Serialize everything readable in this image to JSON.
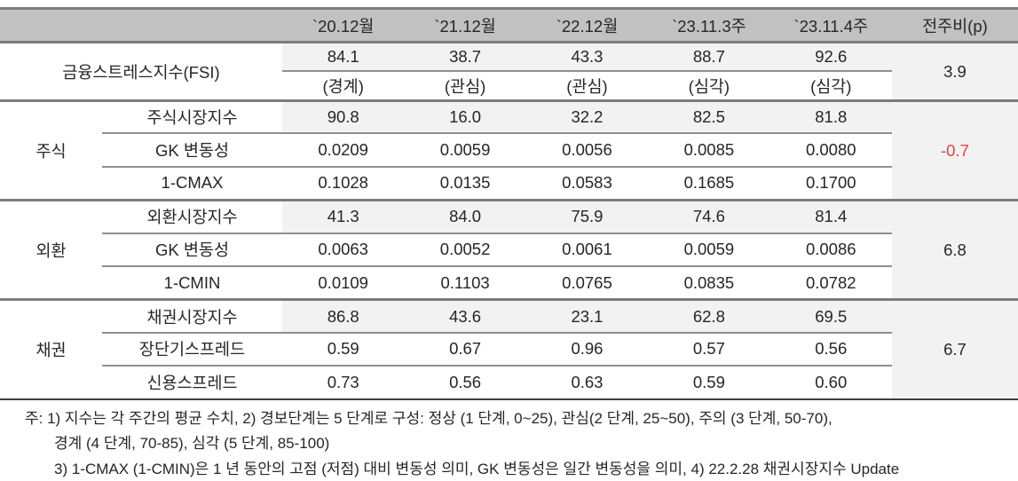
{
  "table": {
    "columns": [
      "`20.12월",
      "`21.12월",
      "`22.12월",
      "`23.11.3주",
      "`23.11.4주",
      "전주비(p)"
    ],
    "fsi": {
      "label": "금융스트레스지수(FSI)",
      "values": [
        "84.1",
        "38.7",
        "43.3",
        "88.7",
        "92.6"
      ],
      "levels": [
        "(경계)",
        "(관심)",
        "(관심)",
        "(심각)",
        "(심각)"
      ],
      "change": "3.9"
    },
    "sections": [
      {
        "group": "주식",
        "change": "-0.7",
        "rows": [
          {
            "label": "주식시장지수",
            "values": [
              "90.8",
              "16.0",
              "32.2",
              "82.5",
              "81.8"
            ]
          },
          {
            "label": "GK 변동성",
            "values": [
              "0.0209",
              "0.0059",
              "0.0056",
              "0.0085",
              "0.0080"
            ]
          },
          {
            "label": "1-CMAX",
            "values": [
              "0.1028",
              "0.0135",
              "0.0583",
              "0.1685",
              "0.1700"
            ]
          }
        ]
      },
      {
        "group": "외환",
        "change": "6.8",
        "rows": [
          {
            "label": "외환시장지수",
            "values": [
              "41.3",
              "84.0",
              "75.9",
              "74.6",
              "81.4"
            ]
          },
          {
            "label": "GK 변동성",
            "values": [
              "0.0063",
              "0.0052",
              "0.0061",
              "0.0059",
              "0.0086"
            ]
          },
          {
            "label": "1-CMIN",
            "values": [
              "0.0109",
              "0.1103",
              "0.0765",
              "0.0835",
              "0.0782"
            ]
          }
        ]
      },
      {
        "group": "채권",
        "change": "6.7",
        "rows": [
          {
            "label": "채권시장지수",
            "values": [
              "86.8",
              "43.6",
              "23.1",
              "62.8",
              "69.5"
            ]
          },
          {
            "label": "장단기스프레드",
            "values": [
              "0.59",
              "0.67",
              "0.96",
              "0.57",
              "0.56"
            ]
          },
          {
            "label": "신용스프레드",
            "values": [
              "0.73",
              "0.56",
              "0.63",
              "0.59",
              "0.60"
            ]
          }
        ]
      }
    ]
  },
  "notes": [
    "주: 1) 지수는 각 주간의 평균 수치, 2) 경보단계는 5 단계로 구성: 정상 (1 단계, 0~25), 관심(2 단계, 25~50), 주의 (3 단계, 50-70),",
    "경계 (4 단계, 70-85), 심각 (5 단계, 85-100)",
    "3) 1-CMAX (1-CMIN)은 1 년 동안의 고점 (저점) 대비 변동성 의미, GK 변동성은 일간 변동성을 의미, 4) 22.2.28 채권시장지수 Update"
  ],
  "colors": {
    "header_bg": "#c1c1c1",
    "row_shade": "#f2f2f2",
    "border_gray": "#7c7c7c",
    "bottom_border": "#3c3c3c",
    "text": "#262626",
    "negative_red": "#e8404a"
  }
}
